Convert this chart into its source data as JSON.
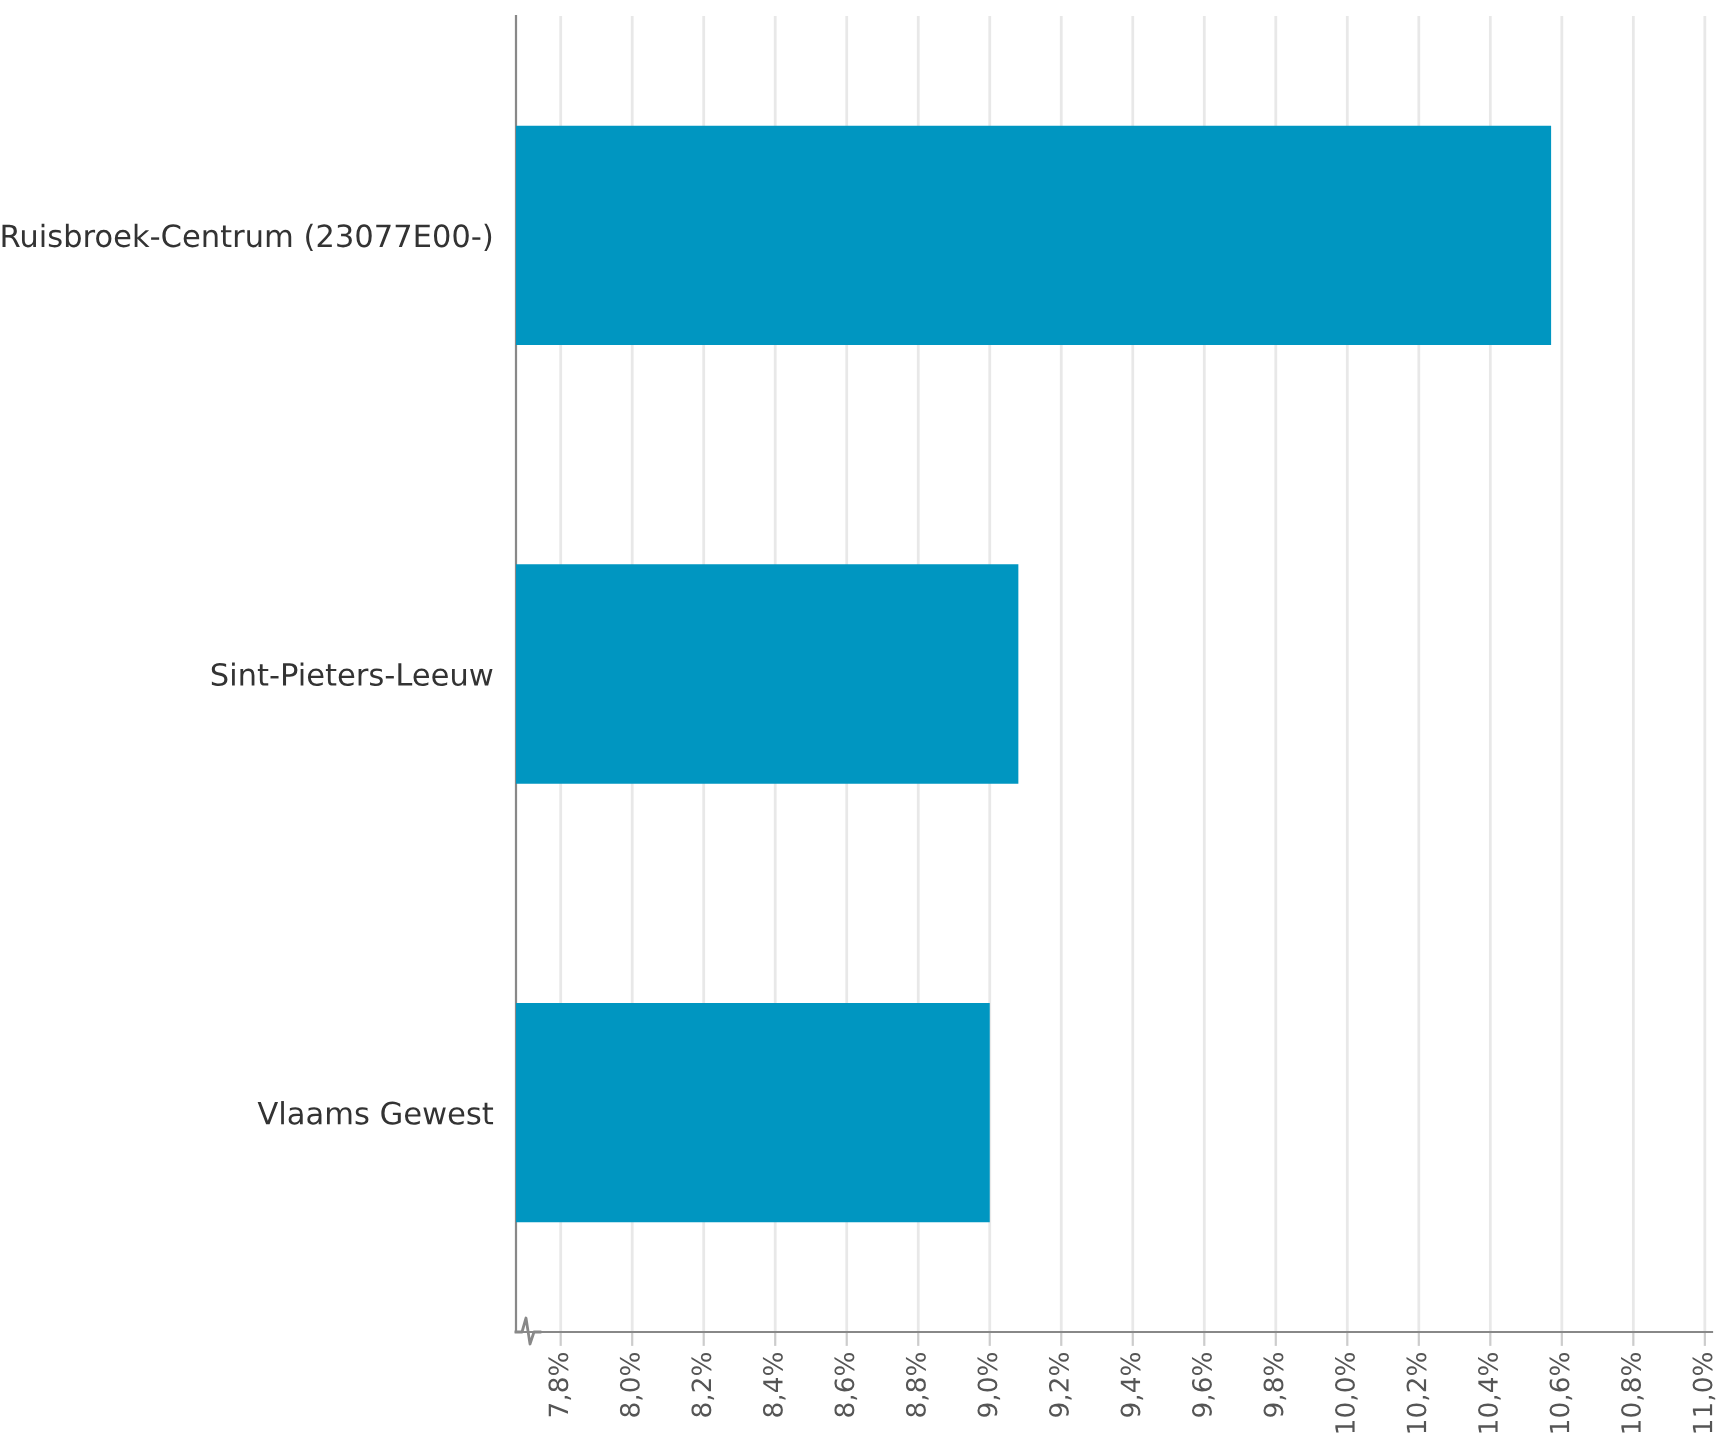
{
  "chart_data": {
    "type": "bar",
    "orientation": "horizontal",
    "categories": [
      "Ruisbroek-Centrum (23077E00-)",
      "Sint-Pieters-Leeuw",
      "Vlaams Gewest"
    ],
    "values": [
      10.57,
      9.08,
      9.0
    ],
    "color": "#0096c1",
    "xlim": [
      7.675,
      11.02
    ],
    "xticks": [
      {
        "value": 7.8,
        "label": "7,8%"
      },
      {
        "value": 8.0,
        "label": "8,0%"
      },
      {
        "value": 8.2,
        "label": "8,2%"
      },
      {
        "value": 8.4,
        "label": "8,4%"
      },
      {
        "value": 8.6,
        "label": "8,6%"
      },
      {
        "value": 8.8,
        "label": "8,8%"
      },
      {
        "value": 9.0,
        "label": "9,0%"
      },
      {
        "value": 9.2,
        "label": "9,2%"
      },
      {
        "value": 9.4,
        "label": "9,4%"
      },
      {
        "value": 9.6,
        "label": "9,6%"
      },
      {
        "value": 9.8,
        "label": "9,8%"
      },
      {
        "value": 10.0,
        "label": "10,0%"
      },
      {
        "value": 10.2,
        "label": "10,2%"
      },
      {
        "value": 10.4,
        "label": "10,4%"
      },
      {
        "value": 10.6,
        "label": "10,6%"
      },
      {
        "value": 10.8,
        "label": "10,8%"
      },
      {
        "value": 11.0,
        "label": "11,0%"
      }
    ],
    "grid": "x"
  }
}
